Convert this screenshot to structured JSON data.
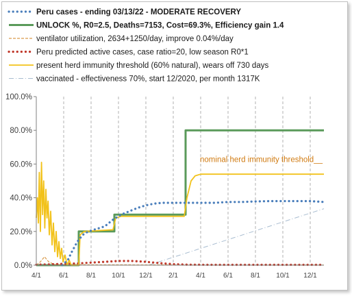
{
  "chart_data": {
    "type": "line",
    "legend_position": "top",
    "grid": "vertical dashed",
    "x_tick_labels": [
      "4/1",
      "6/1",
      "8/1",
      "10/1",
      "12/1",
      "2/1",
      "4/1",
      "6/1",
      "8/1",
      "10/1",
      "12/1"
    ],
    "x_range_months": [
      0,
      21
    ],
    "y_tick_labels": [
      "0.0%",
      "20.0%",
      "40.0%",
      "60.0%",
      "80.0%",
      "100.0%"
    ],
    "ylim": [
      0,
      100
    ],
    "annotation": "nominal herd immunity threshold__",
    "annotation_value": 60,
    "series": [
      {
        "name": "Peru cases  - ending 03/13/22  - MODERATE RECOVERY",
        "color": "#4a7ebb",
        "style": "dotted-bold",
        "bold": true,
        "points": [
          [
            1.9,
            0
          ],
          [
            2.3,
            3
          ],
          [
            2.6,
            8
          ],
          [
            3.0,
            14
          ],
          [
            3.4,
            18
          ],
          [
            3.8,
            20
          ],
          [
            4.2,
            21
          ],
          [
            5.0,
            23
          ],
          [
            5.6,
            27
          ],
          [
            6.2,
            30
          ],
          [
            6.8,
            32
          ],
          [
            7.4,
            34
          ],
          [
            8.0,
            35.5
          ],
          [
            8.6,
            36.5
          ],
          [
            9.2,
            37
          ],
          [
            10,
            37
          ],
          [
            10.7,
            37
          ],
          [
            11.3,
            37
          ],
          [
            12,
            37
          ],
          [
            13,
            37
          ],
          [
            14,
            37.5
          ],
          [
            15,
            37.5
          ],
          [
            16,
            37.8
          ],
          [
            17,
            38
          ],
          [
            18,
            38
          ],
          [
            19,
            38
          ],
          [
            20,
            38
          ],
          [
            21,
            37.5
          ]
        ]
      },
      {
        "name": "UNLOCK %, R0=2.5,  Deaths=7153, Cost=69.3%, Efficiency gain 1.4",
        "color": "#5a9a5a",
        "style": "solid-thick",
        "bold": true,
        "points": [
          [
            0,
            0
          ],
          [
            3.1,
            0
          ],
          [
            3.1,
            20
          ],
          [
            5.7,
            20
          ],
          [
            5.7,
            30
          ],
          [
            10.9,
            30
          ],
          [
            10.9,
            80
          ],
          [
            21,
            80
          ]
        ]
      },
      {
        "name": "ventilator utilization, 2634+1250/day, improve 0.04%/day",
        "color": "#d99a4a",
        "style": "dashed",
        "bold": false,
        "points": [
          [
            0,
            0
          ],
          [
            0.3,
            2
          ],
          [
            0.6,
            5
          ],
          [
            0.9,
            2
          ],
          [
            1.3,
            0.5
          ],
          [
            2,
            0.3
          ],
          [
            5,
            0.2
          ],
          [
            21,
            0.1
          ]
        ]
      },
      {
        "name": "Peru predicted active cases, case ratio=20, low season R0*1",
        "color": "#c0392b",
        "style": "dotted-bold",
        "bold": false,
        "points": [
          [
            0,
            0.3
          ],
          [
            1,
            0.5
          ],
          [
            2,
            0.8
          ],
          [
            3,
            1
          ],
          [
            4,
            1.5
          ],
          [
            5,
            2
          ],
          [
            6,
            2.5
          ],
          [
            7,
            2.5
          ],
          [
            8,
            2
          ],
          [
            9,
            1.2
          ],
          [
            10,
            0.6
          ],
          [
            11,
            0.3
          ],
          [
            13,
            0.2
          ],
          [
            15,
            0.2
          ],
          [
            17,
            0.2
          ],
          [
            19,
            0.2
          ],
          [
            21,
            0.2
          ]
        ]
      },
      {
        "name": "present herd immunity threshold (60% natural), wears off 730 days",
        "color": "#f2c21a",
        "style": "solid",
        "bold": false,
        "points": [
          [
            0,
            28
          ],
          [
            0.08,
            40
          ],
          [
            0.15,
            25
          ],
          [
            0.22,
            55
          ],
          [
            0.3,
            20
          ],
          [
            0.38,
            61
          ],
          [
            0.46,
            30
          ],
          [
            0.54,
            50
          ],
          [
            0.62,
            22
          ],
          [
            0.7,
            45
          ],
          [
            0.78,
            28
          ],
          [
            0.86,
            38
          ],
          [
            0.95,
            18
          ],
          [
            1.05,
            32
          ],
          [
            1.15,
            12
          ],
          [
            1.25,
            25
          ],
          [
            1.35,
            8
          ],
          [
            1.45,
            20
          ],
          [
            1.55,
            5
          ],
          [
            1.65,
            14
          ],
          [
            1.75,
            4
          ],
          [
            1.85,
            10
          ],
          [
            1.95,
            2
          ],
          [
            2.1,
            6
          ],
          [
            2.25,
            0
          ],
          [
            2.4,
            3
          ],
          [
            2.55,
            0
          ],
          [
            3.1,
            0
          ],
          [
            3.2,
            18
          ],
          [
            3.5,
            20
          ],
          [
            5.6,
            21
          ],
          [
            5.8,
            28
          ],
          [
            6.2,
            29
          ],
          [
            10.8,
            29
          ],
          [
            11.0,
            40
          ],
          [
            11.3,
            50
          ],
          [
            11.6,
            53
          ],
          [
            12,
            54
          ],
          [
            21,
            54
          ]
        ]
      },
      {
        "name": "vaccinated - effectiveness 70%, start 12/2020, per month 1317K",
        "color": "#a8bcd0",
        "style": "dashdot",
        "bold": false,
        "points": [
          [
            8.2,
            0
          ],
          [
            21,
            33.5
          ]
        ]
      }
    ]
  }
}
